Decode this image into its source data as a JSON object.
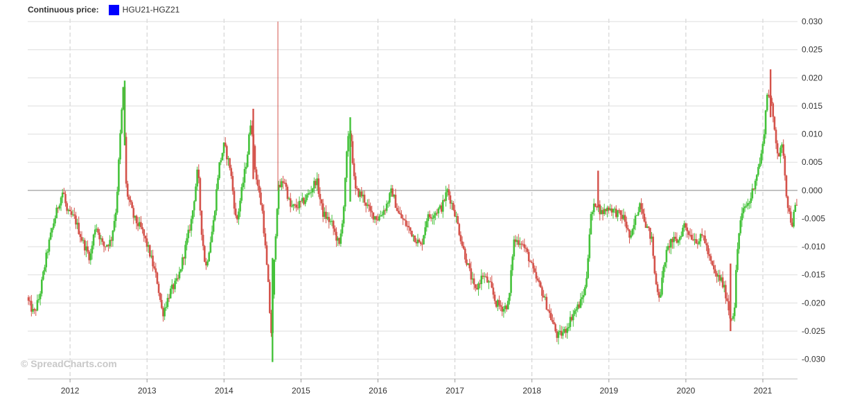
{
  "legend": {
    "label": "Continuous price:",
    "series": "HGU21-HGZ21",
    "swatch_color": "#0000ff"
  },
  "watermark": "© SpreadCharts.com",
  "colors": {
    "up": "#44c23a",
    "down": "#d4524a",
    "zero_line": "#888888",
    "grid": "#dddddd"
  },
  "chart_data": {
    "type": "candlestick",
    "series_name": "HGU21-HGZ21",
    "xlim": [
      2011.45,
      2021.45
    ],
    "ylim": [
      -0.0335,
      0.0305
    ],
    "yticks": [
      0.03,
      0.025,
      0.02,
      0.015,
      0.01,
      0.005,
      0.0,
      -0.005,
      -0.01,
      -0.015,
      -0.02,
      -0.025,
      -0.03
    ],
    "ytick_labels": [
      "0.030",
      "0.025",
      "0.020",
      "0.015",
      "0.010",
      "0.005",
      "0.000",
      "-0.005",
      "-0.010",
      "-0.015",
      "-0.020",
      "-0.025",
      "-0.030"
    ],
    "xticks": [
      2012,
      2013,
      2014,
      2015,
      2016,
      2017,
      2018,
      2019,
      2020,
      2021
    ],
    "xtick_labels": [
      "2012",
      "2013",
      "2014",
      "2015",
      "2016",
      "2017",
      "2018",
      "2019",
      "2020",
      "2021"
    ],
    "grid": true,
    "trend": [
      [
        2011.45,
        -0.019
      ],
      [
        2011.55,
        -0.022
      ],
      [
        2011.62,
        -0.019
      ],
      [
        2011.72,
        -0.011
      ],
      [
        2011.8,
        -0.006
      ],
      [
        2011.88,
        -0.002
      ],
      [
        2011.93,
        0.0
      ],
      [
        2011.98,
        -0.004
      ],
      [
        2012.08,
        -0.005
      ],
      [
        2012.18,
        -0.009
      ],
      [
        2012.28,
        -0.012
      ],
      [
        2012.35,
        -0.006
      ],
      [
        2012.45,
        -0.01
      ],
      [
        2012.55,
        -0.009
      ],
      [
        2012.62,
        -0.003
      ],
      [
        2012.68,
        0.012
      ],
      [
        2012.71,
        0.018
      ],
      [
        2012.75,
        0.0
      ],
      [
        2012.85,
        -0.005
      ],
      [
        2012.95,
        -0.007
      ],
      [
        2013.05,
        -0.011
      ],
      [
        2013.15,
        -0.016
      ],
      [
        2013.22,
        -0.022
      ],
      [
        2013.32,
        -0.018
      ],
      [
        2013.42,
        -0.016
      ],
      [
        2013.52,
        -0.01
      ],
      [
        2013.6,
        -0.005
      ],
      [
        2013.68,
        0.004
      ],
      [
        2013.72,
        -0.006
      ],
      [
        2013.78,
        -0.014
      ],
      [
        2013.88,
        -0.006
      ],
      [
        2013.95,
        0.004
      ],
      [
        2014.02,
        0.008
      ],
      [
        2014.1,
        0.004
      ],
      [
        2014.18,
        -0.006
      ],
      [
        2014.25,
        0.0
      ],
      [
        2014.32,
        0.006
      ],
      [
        2014.37,
        0.013
      ],
      [
        2014.42,
        0.004
      ],
      [
        2014.52,
        -0.004
      ],
      [
        2014.6,
        -0.018
      ],
      [
        2014.63,
        -0.026
      ],
      [
        2014.68,
        -0.01
      ],
      [
        2014.72,
        0.0
      ],
      [
        2014.8,
        0.002
      ],
      [
        2014.88,
        -0.003
      ],
      [
        2014.95,
        -0.003
      ],
      [
        2015.05,
        -0.002
      ],
      [
        2015.15,
        0.0
      ],
      [
        2015.22,
        0.002
      ],
      [
        2015.3,
        -0.004
      ],
      [
        2015.42,
        -0.006
      ],
      [
        2015.52,
        -0.01
      ],
      [
        2015.58,
        -0.002
      ],
      [
        2015.62,
        0.008
      ],
      [
        2015.66,
        0.011
      ],
      [
        2015.72,
        0.0
      ],
      [
        2015.82,
        -0.001
      ],
      [
        2015.92,
        -0.004
      ],
      [
        2016.02,
        -0.005
      ],
      [
        2016.12,
        -0.003
      ],
      [
        2016.2,
        0.0
      ],
      [
        2016.28,
        -0.004
      ],
      [
        2016.38,
        -0.006
      ],
      [
        2016.48,
        -0.008
      ],
      [
        2016.58,
        -0.01
      ],
      [
        2016.65,
        -0.005
      ],
      [
        2016.75,
        -0.004
      ],
      [
        2016.85,
        -0.003
      ],
      [
        2016.92,
        0.0
      ],
      [
        2017.02,
        -0.004
      ],
      [
        2017.12,
        -0.01
      ],
      [
        2017.2,
        -0.014
      ],
      [
        2017.28,
        -0.018
      ],
      [
        2017.38,
        -0.015
      ],
      [
        2017.48,
        -0.017
      ],
      [
        2017.55,
        -0.02
      ],
      [
        2017.65,
        -0.021
      ],
      [
        2017.72,
        -0.02
      ],
      [
        2017.78,
        -0.009
      ],
      [
        2017.88,
        -0.009
      ],
      [
        2017.98,
        -0.012
      ],
      [
        2018.05,
        -0.015
      ],
      [
        2018.15,
        -0.018
      ],
      [
        2018.25,
        -0.022
      ],
      [
        2018.35,
        -0.026
      ],
      [
        2018.45,
        -0.025
      ],
      [
        2018.55,
        -0.022
      ],
      [
        2018.65,
        -0.02
      ],
      [
        2018.72,
        -0.017
      ],
      [
        2018.78,
        -0.005
      ],
      [
        2018.85,
        -0.002
      ],
      [
        2018.92,
        -0.004
      ],
      [
        2019.02,
        -0.003
      ],
      [
        2019.12,
        -0.004
      ],
      [
        2019.22,
        -0.005
      ],
      [
        2019.3,
        -0.009
      ],
      [
        2019.38,
        -0.004
      ],
      [
        2019.43,
        -0.002
      ],
      [
        2019.5,
        -0.006
      ],
      [
        2019.58,
        -0.009
      ],
      [
        2019.62,
        -0.016
      ],
      [
        2019.68,
        -0.019
      ],
      [
        2019.75,
        -0.012
      ],
      [
        2019.82,
        -0.009
      ],
      [
        2019.92,
        -0.009
      ],
      [
        2020.0,
        -0.006
      ],
      [
        2020.08,
        -0.008
      ],
      [
        2020.18,
        -0.009
      ],
      [
        2020.25,
        -0.008
      ],
      [
        2020.32,
        -0.012
      ],
      [
        2020.4,
        -0.015
      ],
      [
        2020.48,
        -0.016
      ],
      [
        2020.55,
        -0.019
      ],
      [
        2020.6,
        -0.023
      ],
      [
        2020.65,
        -0.021
      ],
      [
        2020.68,
        -0.012
      ],
      [
        2020.72,
        -0.006
      ],
      [
        2020.78,
        -0.003
      ],
      [
        2020.85,
        -0.002
      ],
      [
        2020.92,
        0.002
      ],
      [
        2020.98,
        0.005
      ],
      [
        2021.02,
        0.008
      ],
      [
        2021.08,
        0.018
      ],
      [
        2021.12,
        0.016
      ],
      [
        2021.18,
        0.01
      ],
      [
        2021.22,
        0.006
      ],
      [
        2021.28,
        0.008
      ],
      [
        2021.32,
        0.0
      ],
      [
        2021.36,
        -0.004
      ],
      [
        2021.4,
        -0.006
      ],
      [
        2021.44,
        -0.003
      ]
    ],
    "spikes": [
      {
        "x": 2014.7,
        "high": 0.03,
        "low": 0.0,
        "dir": "down"
      },
      {
        "x": 2014.63,
        "high": -0.012,
        "low": -0.0305,
        "dir": "up"
      },
      {
        "x": 2012.71,
        "high": 0.0195,
        "low": 0.008,
        "dir": "up"
      },
      {
        "x": 2021.1,
        "high": 0.0215,
        "low": 0.013,
        "dir": "down"
      },
      {
        "x": 2015.64,
        "high": 0.013,
        "low": -0.002,
        "dir": "up"
      },
      {
        "x": 2014.38,
        "high": 0.0145,
        "low": 0.002,
        "dir": "down"
      },
      {
        "x": 2018.86,
        "high": 0.0035,
        "low": -0.003,
        "dir": "down"
      },
      {
        "x": 2020.58,
        "high": -0.013,
        "low": -0.025,
        "dir": "down"
      }
    ]
  }
}
